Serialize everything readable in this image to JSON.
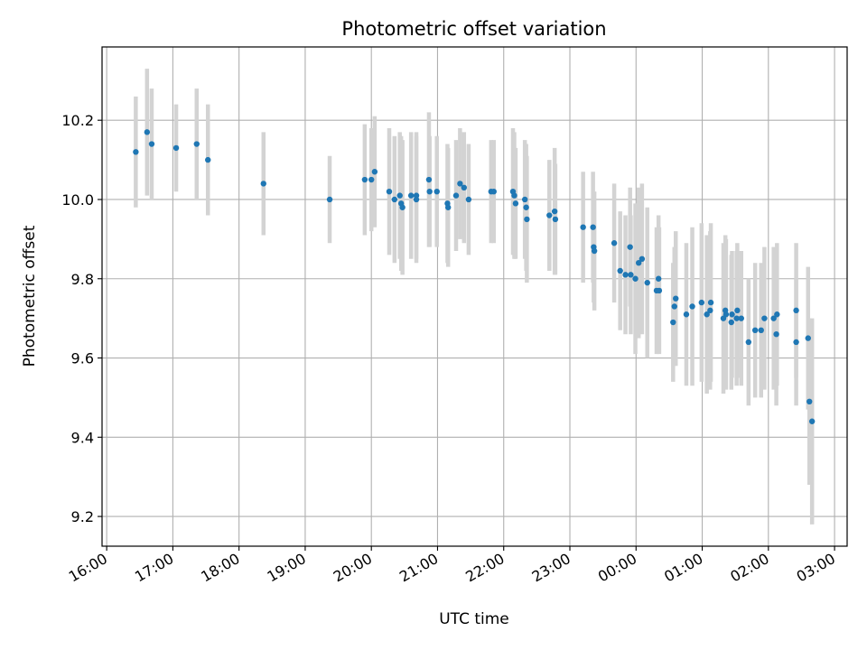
{
  "chart_data": {
    "type": "scatter",
    "title": "Photometric offset variation",
    "xlabel": "UTC time",
    "ylabel": "Photometric offset",
    "x_tick_labels": [
      "16:00",
      "17:00",
      "18:00",
      "19:00",
      "20:00",
      "21:00",
      "22:00",
      "23:00",
      "00:00",
      "01:00",
      "02:00",
      "03:00"
    ],
    "x_ticks_hours": [
      16,
      17,
      18,
      19,
      20,
      21,
      22,
      23,
      24,
      25,
      26,
      27
    ],
    "y_ticks": [
      9.2,
      9.4,
      9.6,
      9.8,
      10.0,
      10.2
    ],
    "y_tick_labels": [
      "9.2",
      "9.4",
      "9.6",
      "9.8",
      "10.0",
      "10.2"
    ],
    "xlim_hours": [
      15.93,
      27.19
    ],
    "ylim": [
      9.125,
      10.385
    ],
    "grid": true,
    "colors": {
      "marker": "#1f77b4",
      "errorbar": "#d3d3d3",
      "grid": "#b0b0b0"
    },
    "series": [
      {
        "x_hours": [
          16.44,
          16.61,
          16.68,
          17.05,
          17.36,
          17.53,
          18.37,
          19.37,
          19.9,
          20.0,
          20.05,
          20.27,
          20.35,
          20.43,
          20.45,
          20.47,
          20.6,
          20.68,
          20.68,
          20.87,
          20.88,
          20.99,
          21.15,
          21.16,
          21.28,
          21.34,
          21.4,
          21.47,
          21.81,
          21.85,
          22.14,
          22.16,
          22.18,
          22.32,
          22.34,
          22.35,
          22.69,
          22.77,
          22.78,
          23.2,
          23.35,
          23.36,
          23.37,
          23.67,
          23.76,
          23.84,
          23.91,
          23.92,
          23.99,
          24.04,
          24.09,
          24.17,
          24.31,
          24.34,
          24.35,
          24.56,
          24.58,
          24.6,
          24.76,
          24.85,
          24.99,
          25.07,
          25.12,
          25.13,
          25.32,
          25.35,
          25.36,
          25.44,
          25.45,
          25.52,
          25.53,
          25.59,
          25.7,
          25.8,
          25.89,
          25.94,
          26.08,
          26.12,
          26.13,
          26.42,
          26.42,
          26.6,
          26.62,
          26.66
        ],
        "y": [
          10.12,
          10.17,
          10.14,
          10.13,
          10.14,
          10.1,
          10.04,
          10.0,
          10.05,
          10.05,
          10.07,
          10.02,
          10.0,
          10.01,
          9.99,
          9.98,
          10.01,
          10.01,
          10.0,
          10.05,
          10.02,
          10.02,
          9.99,
          9.98,
          10.01,
          10.04,
          10.03,
          10.0,
          10.02,
          10.02,
          10.02,
          10.01,
          9.99,
          10.0,
          9.98,
          9.95,
          9.96,
          9.97,
          9.95,
          9.93,
          9.93,
          9.88,
          9.87,
          9.89,
          9.82,
          9.81,
          9.88,
          9.81,
          9.8,
          9.84,
          9.85,
          9.79,
          9.77,
          9.8,
          9.77,
          9.69,
          9.73,
          9.75,
          9.71,
          9.73,
          9.74,
          9.71,
          9.72,
          9.74,
          9.7,
          9.72,
          9.71,
          9.69,
          9.71,
          9.7,
          9.72,
          9.7,
          9.64,
          9.67,
          9.67,
          9.7,
          9.7,
          9.66,
          9.71,
          9.72,
          9.64,
          9.65,
          9.49,
          9.44
        ],
        "y_err": [
          0.14,
          0.16,
          0.14,
          0.11,
          0.14,
          0.14,
          0.13,
          0.11,
          0.14,
          0.13,
          0.14,
          0.16,
          0.16,
          0.16,
          0.17,
          0.17,
          0.16,
          0.16,
          0.16,
          0.17,
          0.14,
          0.14,
          0.15,
          0.15,
          0.14,
          0.14,
          0.14,
          0.14,
          0.13,
          0.13,
          0.16,
          0.16,
          0.14,
          0.15,
          0.16,
          0.16,
          0.14,
          0.16,
          0.14,
          0.14,
          0.14,
          0.14,
          0.15,
          0.15,
          0.15,
          0.15,
          0.15,
          0.15,
          0.19,
          0.19,
          0.19,
          0.19,
          0.16,
          0.16,
          0.16,
          0.15,
          0.15,
          0.17,
          0.18,
          0.2,
          0.2,
          0.2,
          0.2,
          0.2,
          0.19,
          0.19,
          0.19,
          0.17,
          0.16,
          0.17,
          0.17,
          0.17,
          0.16,
          0.17,
          0.17,
          0.18,
          0.18,
          0.18,
          0.18,
          0.17,
          0.16,
          0.18,
          0.21,
          0.26
        ]
      }
    ]
  }
}
